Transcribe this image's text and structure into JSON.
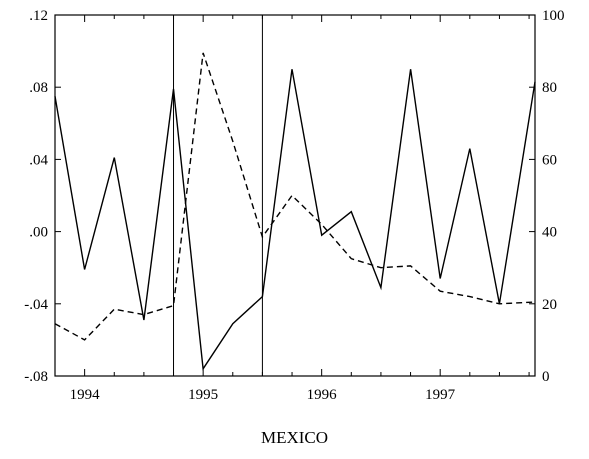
{
  "chart_data": {
    "type": "line",
    "title": "MEXICO",
    "x_range": [
      1993.75,
      1997.8
    ],
    "x_ticks": [
      1994,
      1995,
      1996,
      1997
    ],
    "x_tick_labels": [
      "1994",
      "1995",
      "1996",
      "1997"
    ],
    "left_axis": {
      "ylim": [
        -0.08,
        0.12
      ],
      "ticks": [
        -0.08,
        -0.04,
        0.0,
        0.04,
        0.08,
        0.12
      ],
      "tick_labels": [
        "-.08",
        "-.04",
        ".00",
        ".04",
        ".08",
        ".12"
      ]
    },
    "right_axis": {
      "ylim": [
        0,
        100
      ],
      "ticks": [
        0,
        20,
        40,
        60,
        80,
        100
      ],
      "tick_labels": [
        "0",
        "20",
        "40",
        "60",
        "80",
        "100"
      ]
    },
    "vertical_markers": [
      1994.75,
      1995.5
    ],
    "grid": false,
    "legend": "none",
    "series": [
      {
        "axis": "left",
        "style": "solid",
        "x": [
          1993.75,
          1994.0,
          1994.25,
          1994.5,
          1994.75,
          1995.0,
          1995.25,
          1995.5,
          1995.75,
          1996.0,
          1996.25,
          1996.5,
          1996.75,
          1997.0,
          1997.25,
          1997.5,
          1997.8
        ],
        "values": [
          0.075,
          -0.021,
          0.041,
          -0.049,
          0.079,
          -0.076,
          -0.051,
          -0.036,
          0.09,
          -0.002,
          0.011,
          -0.031,
          0.09,
          -0.026,
          0.046,
          -0.04,
          0.083
        ]
      },
      {
        "axis": "right",
        "style": "dashed",
        "x": [
          1993.75,
          1994.0,
          1994.25,
          1994.5,
          1994.75,
          1995.0,
          1995.25,
          1995.5,
          1995.75,
          1996.0,
          1996.25,
          1996.5,
          1996.75,
          1997.0,
          1997.25,
          1997.5,
          1997.8
        ],
        "values": [
          14.5,
          10,
          18.5,
          17,
          19.5,
          89.5,
          65,
          38.5,
          50,
          42,
          32.5,
          30,
          30.5,
          23.5,
          22,
          20,
          20.5
        ]
      }
    ]
  }
}
